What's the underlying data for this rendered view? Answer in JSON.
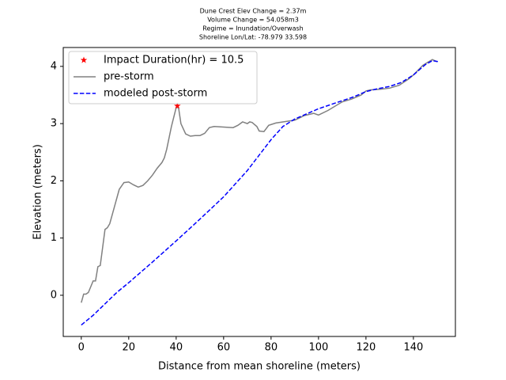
{
  "chart_data": {
    "type": "line",
    "title": [
      "Dune Crest Elev Change = 2.37m",
      "Volume Change = 54.058m3",
      "Regime = Inundation/Overwash",
      "Shoreline Lon/Lat: -78.979 33.598"
    ],
    "xlabel": "Distance from mean shoreline (meters)",
    "ylabel": "Elevation (meters)",
    "xlim": [
      -7.6,
      157.7
    ],
    "ylim": [
      -0.72,
      4.33
    ],
    "xticks": [
      0,
      20,
      40,
      60,
      80,
      100,
      120,
      140
    ],
    "yticks": [
      0,
      1,
      2,
      3,
      4
    ],
    "legend": "upper left",
    "series": [
      {
        "name": "Impact Duration(hr) = 10.5",
        "type": "scatter",
        "marker": "star",
        "color": "#ff0000",
        "x": [
          40.5
        ],
        "values": [
          3.31
        ]
      },
      {
        "name": "pre-storm",
        "type": "line",
        "linestyle": "solid",
        "color": "#808080",
        "x": [
          0,
          1,
          2,
          3,
          5,
          6,
          7,
          8,
          10,
          11,
          12,
          14,
          16,
          18,
          20,
          22,
          24,
          26,
          28,
          30,
          32,
          34,
          35,
          36,
          38,
          40,
          41,
          42,
          44,
          46,
          48,
          50,
          52,
          54,
          56,
          60,
          64,
          66,
          68,
          70,
          71,
          72,
          74,
          75,
          77,
          79,
          82,
          85,
          90,
          94,
          98,
          100,
          104,
          110,
          114,
          118,
          120,
          122,
          126,
          130,
          134,
          138,
          140,
          144,
          146,
          148,
          150
        ],
        "values": [
          -0.13,
          0.02,
          0.02,
          0.05,
          0.25,
          0.25,
          0.5,
          0.52,
          1.15,
          1.18,
          1.25,
          1.55,
          1.85,
          1.97,
          1.98,
          1.93,
          1.89,
          1.92,
          2.0,
          2.1,
          2.22,
          2.32,
          2.4,
          2.55,
          2.95,
          3.28,
          3.28,
          3.0,
          2.82,
          2.78,
          2.79,
          2.79,
          2.83,
          2.93,
          2.95,
          2.94,
          2.93,
          2.97,
          3.03,
          3.0,
          3.03,
          3.02,
          2.95,
          2.87,
          2.86,
          2.97,
          3.01,
          3.03,
          3.06,
          3.14,
          3.18,
          3.15,
          3.23,
          3.38,
          3.43,
          3.5,
          3.57,
          3.59,
          3.6,
          3.62,
          3.67,
          3.78,
          3.85,
          4.02,
          4.07,
          4.12,
          4.08
        ]
      },
      {
        "name": "modeled post-storm",
        "type": "line",
        "linestyle": "dashed",
        "color": "#0000ff",
        "x": [
          0,
          5,
          10,
          15,
          20,
          30,
          40,
          50,
          60,
          70,
          80,
          85,
          90,
          95,
          100,
          105,
          110,
          115,
          120,
          125,
          130,
          135,
          140,
          145,
          148,
          151
        ],
        "values": [
          -0.52,
          -0.35,
          -0.15,
          0.05,
          0.22,
          0.58,
          0.95,
          1.33,
          1.72,
          2.18,
          2.72,
          2.95,
          3.08,
          3.17,
          3.26,
          3.33,
          3.4,
          3.47,
          3.56,
          3.61,
          3.65,
          3.72,
          3.85,
          4.03,
          4.1,
          4.08
        ]
      }
    ]
  }
}
